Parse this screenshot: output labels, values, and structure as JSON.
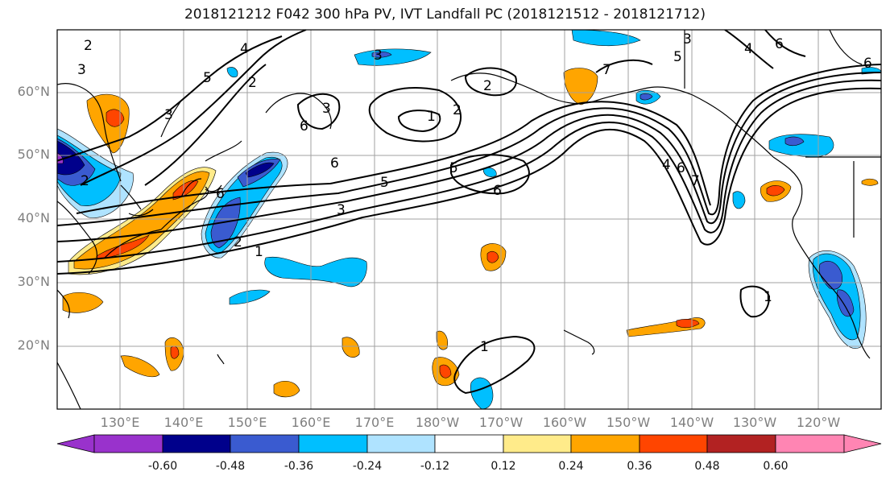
{
  "title": "2018121212 F042 300 hPa PV, IVT Landfall PC (2018121512 - 2018121712)",
  "map": {
    "lat_labels": [
      "60°N",
      "50°N",
      "40°N",
      "30°N",
      "20°N"
    ],
    "lon_labels": [
      "130°E",
      "140°E",
      "150°E",
      "160°E",
      "170°E",
      "180°W",
      "170°W",
      "160°W",
      "150°W",
      "140°W",
      "130°W",
      "120°W"
    ],
    "contour_labels": [
      "2",
      "3",
      "5",
      "2",
      "4",
      "3",
      "2",
      "1",
      "2",
      "3",
      "6",
      "6",
      "5",
      "6",
      "5",
      "3",
      "1",
      "2",
      "6",
      "7",
      "4",
      "6",
      "7",
      "3",
      "5",
      "6",
      "4",
      "6",
      "1",
      "1",
      "2",
      "3"
    ],
    "colors": {
      "land_outline": "#000000",
      "grid": "#a0a0a0",
      "contour": "#000000"
    }
  },
  "colorbar": {
    "colors": [
      "#9932cc",
      "#00008b",
      "#3a5bd0",
      "#00bfff",
      "#afe3ff",
      "#ffffff",
      "#ffeb8a",
      "#ffa500",
      "#ff4500",
      "#b22222",
      "#ff85b3"
    ],
    "tick_labels": [
      "-0.60",
      "-0.48",
      "-0.36",
      "-0.24",
      "-0.12",
      "0.12",
      "0.24",
      "0.36",
      "0.48",
      "0.60"
    ]
  }
}
